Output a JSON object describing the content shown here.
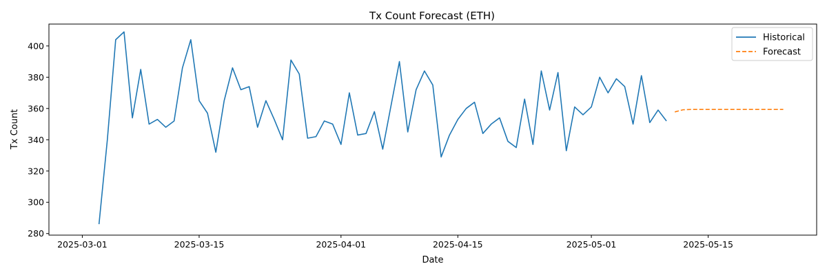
{
  "chart_data": {
    "type": "line",
    "title": "Tx Count Forecast (ETH)",
    "xlabel": "Date",
    "ylabel": "Tx Count",
    "xlim": [
      "2025-02-25",
      "2025-05-28"
    ],
    "ylim": [
      279,
      414
    ],
    "x_ticks": [
      "2025-03-01",
      "2025-03-15",
      "2025-04-01",
      "2025-04-15",
      "2025-05-01",
      "2025-05-15"
    ],
    "y_ticks": [
      280,
      300,
      320,
      340,
      360,
      380,
      400
    ],
    "grid": false,
    "legend_position": "top-right",
    "series": [
      {
        "name": "Historical",
        "color": "#1f77b4",
        "style": "solid",
        "start_date": "2025-03-03",
        "values": [
          286,
          340,
          404,
          409,
          354,
          385,
          350,
          353,
          348,
          352,
          386,
          404,
          365,
          357,
          332,
          365,
          386,
          372,
          374,
          348,
          365,
          353,
          340,
          391,
          382,
          341,
          342,
          352,
          350,
          337,
          370,
          343,
          344,
          358,
          334,
          362,
          390,
          345,
          372,
          384,
          375,
          329,
          343,
          353,
          360,
          364,
          344,
          350,
          354,
          339,
          335,
          366,
          337,
          384,
          359,
          383,
          333,
          361,
          356,
          361,
          380,
          370,
          379,
          374,
          350,
          381,
          351,
          359,
          352
        ]
      },
      {
        "name": "Forecast",
        "color": "#ff7f0e",
        "style": "dashed",
        "start_date": "2025-05-11",
        "values": [
          357.8,
          359.2,
          359.4,
          359.4,
          359.4,
          359.4,
          359.4,
          359.4,
          359.4,
          359.4,
          359.4,
          359.4,
          359.4,
          359.4
        ]
      }
    ]
  }
}
